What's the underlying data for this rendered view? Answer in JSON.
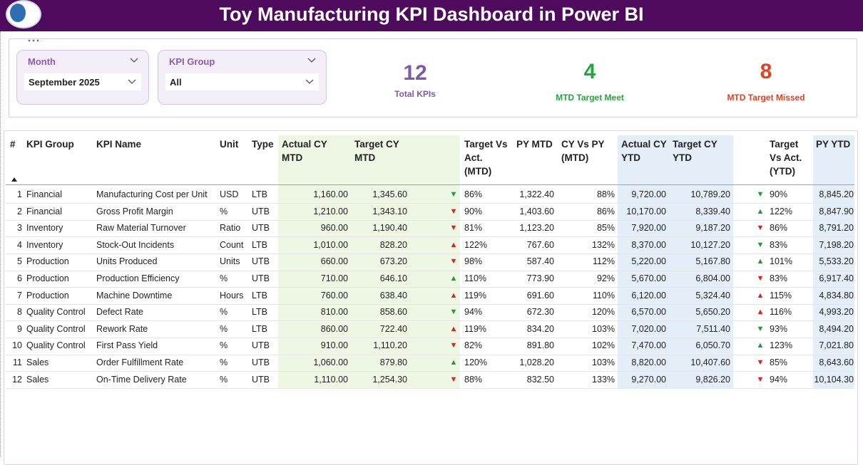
{
  "header": {
    "title": "Toy Manufacturing KPI Dashboard in Power BI"
  },
  "filters": [
    {
      "label": "Month",
      "value": "September 2025"
    },
    {
      "label": "KPI Group",
      "value": "All"
    }
  ],
  "cards": [
    {
      "value": "12",
      "label": "Total KPIs",
      "accent": "#7b5aa6",
      "bg": "#f1ecf6",
      "color": "#7b5aa6"
    },
    {
      "value": "4",
      "label": "MTD Target Meet",
      "accent": "#22a83a",
      "bg": "#eef8ef",
      "color": "#22a83a"
    },
    {
      "value": "8",
      "label": "MTD Target Missed",
      "accent": "#ee4422",
      "bg": "#fdf0ec",
      "color": "#e2401f"
    }
  ],
  "table": {
    "columns": [
      "#",
      "KPI Group",
      "KPI Name",
      "Unit",
      "Type",
      "Actual CY MTD",
      "Target CY MTD",
      "Target Vs Act. (MTD)",
      "PY MTD",
      "CY Vs PY (MTD)",
      "Actual CY YTD",
      "Target CY YTD",
      "Target Vs Act. (YTD)",
      "PY YTD"
    ],
    "rows": [
      [
        "1",
        "Financial",
        "Manufacturing Cost per Unit",
        "USD",
        "LTB",
        "1,160.00",
        "1,345.60",
        "86%",
        "1,322.40",
        "88%",
        "9,720.00",
        "10,789.20",
        "90%",
        "8,845.20"
      ],
      [
        "2",
        "Financial",
        "Gross Profit Margin",
        "%",
        "UTB",
        "1,210.00",
        "1,343.10",
        "90%",
        "1,403.60",
        "86%",
        "10,170.00",
        "8,339.40",
        "122%",
        "8,847.90"
      ],
      [
        "3",
        "Inventory",
        "Raw Material Turnover",
        "Ratio",
        "UTB",
        "960.00",
        "1,190.40",
        "81%",
        "1,123.20",
        "85%",
        "7,920.00",
        "9,187.20",
        "86%",
        "8,791.20"
      ],
      [
        "4",
        "Inventory",
        "Stock-Out Incidents",
        "Count",
        "LTB",
        "1,010.00",
        "828.20",
        "122%",
        "767.60",
        "132%",
        "8,370.00",
        "10,127.20",
        "83%",
        "7,198.20"
      ],
      [
        "5",
        "Production",
        "Units Produced",
        "Units",
        "UTB",
        "660.00",
        "673.20",
        "98%",
        "587.40",
        "112%",
        "5,220.00",
        "5,167.80",
        "101%",
        "5,533.20"
      ],
      [
        "6",
        "Production",
        "Production Efficiency",
        "%",
        "UTB",
        "710.00",
        "646.10",
        "110%",
        "773.90",
        "92%",
        "5,670.00",
        "6,804.00",
        "83%",
        "6,917.40"
      ],
      [
        "7",
        "Production",
        "Machine Downtime",
        "Hours",
        "LTB",
        "760.00",
        "638.40",
        "119%",
        "691.60",
        "110%",
        "6,120.00",
        "5,324.40",
        "115%",
        "4,834.80"
      ],
      [
        "8",
        "Quality Control",
        "Defect Rate",
        "%",
        "LTB",
        "810.00",
        "858.60",
        "94%",
        "672.30",
        "120%",
        "6,570.00",
        "5,650.20",
        "116%",
        "4,993.20"
      ],
      [
        "9",
        "Quality Control",
        "Rework Rate",
        "%",
        "LTB",
        "860.00",
        "722.40",
        "119%",
        "834.20",
        "103%",
        "7,020.00",
        "7,511.40",
        "93%",
        "8,494.20"
      ],
      [
        "10",
        "Quality Control",
        "First Pass Yield",
        "%",
        "UTB",
        "910.00",
        "1,110.20",
        "82%",
        "891.80",
        "102%",
        "7,470.00",
        "6,050.70",
        "123%",
        "7,021.80"
      ],
      [
        "11",
        "Sales",
        "Order Fulfillment Rate",
        "%",
        "UTB",
        "1,060.00",
        "879.80",
        "120%",
        "1,028.20",
        "103%",
        "8,820.00",
        "10,407.60",
        "85%",
        "8,643.60"
      ],
      [
        "12",
        "Sales",
        "On-Time Delivery Rate",
        "%",
        "UTB",
        "1,110.00",
        "1,254.30",
        "88%",
        "832.50",
        "133%",
        "9,270.00",
        "9,826.20",
        "94%",
        "10,104.30"
      ]
    ],
    "mtd_icons": [
      {
        "symbol": "▼",
        "color": "#1f9d2e"
      },
      {
        "symbol": "▼",
        "color": "#e02020"
      },
      {
        "symbol": "▼",
        "color": "#e02020"
      },
      {
        "symbol": "▲",
        "color": "#e02020"
      },
      {
        "symbol": "▼",
        "color": "#e02020"
      },
      {
        "symbol": "▲",
        "color": "#1f9d2e"
      },
      {
        "symbol": "▲",
        "color": "#e02020"
      },
      {
        "symbol": "▼",
        "color": "#1f9d2e"
      },
      {
        "symbol": "▲",
        "color": "#e02020"
      },
      {
        "symbol": "▼",
        "color": "#e02020"
      },
      {
        "symbol": "▲",
        "color": "#1f9d2e"
      },
      {
        "symbol": "▼",
        "color": "#e02020"
      }
    ],
    "ytd_icons": [
      {
        "symbol": "▼",
        "color": "#1f9d2e"
      },
      {
        "symbol": "▲",
        "color": "#1f9d2e"
      },
      {
        "symbol": "▼",
        "color": "#e02020"
      },
      {
        "symbol": "▼",
        "color": "#1f9d2e"
      },
      {
        "symbol": "▲",
        "color": "#1f9d2e"
      },
      {
        "symbol": "▼",
        "color": "#e02020"
      },
      {
        "symbol": "▲",
        "color": "#e02020"
      },
      {
        "symbol": "▲",
        "color": "#e02020"
      },
      {
        "symbol": "▼",
        "color": "#1f9d2e"
      },
      {
        "symbol": "▲",
        "color": "#1f9d2e"
      },
      {
        "symbol": "▼",
        "color": "#e02020"
      },
      {
        "symbol": "▼",
        "color": "#e02020"
      }
    ]
  }
}
